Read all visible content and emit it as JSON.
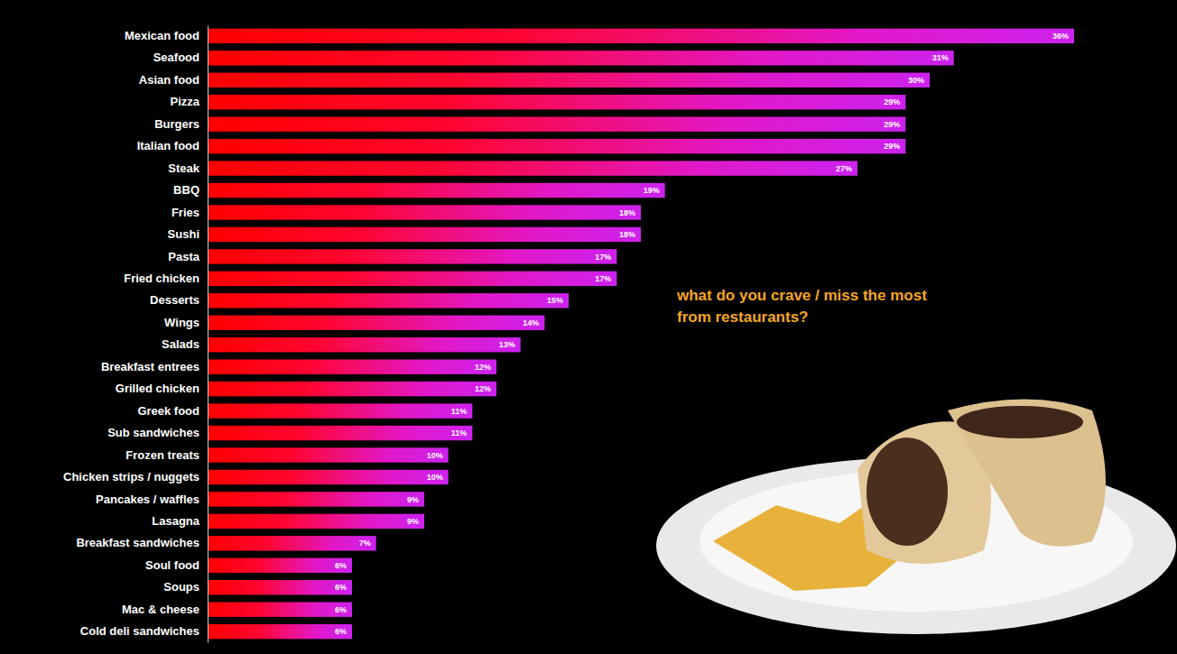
{
  "chart_data": {
    "type": "bar",
    "orientation": "horizontal",
    "title": "what do you crave / miss the most from restaurants?",
    "categories": [
      "Mexican food",
      "Seafood",
      "Asian food",
      "Pizza",
      "Burgers",
      "Italian food",
      "Steak",
      "BBQ",
      "Fries",
      "Sushi",
      "Pasta",
      "Fried chicken",
      "Desserts",
      "Wings",
      "Salads",
      "Breakfast entrees",
      "Grilled chicken",
      "Greek food",
      "Sub sandwiches",
      "Frozen treats",
      "Chicken strips / nuggets",
      "Pancakes / waffles",
      "Lasagna",
      "Breakfast sandwiches",
      "Soul food",
      "Soups",
      "Mac & cheese",
      "Cold deli sandwiches"
    ],
    "values": [
      36,
      31,
      30,
      29,
      29,
      29,
      27,
      19,
      18,
      18,
      17,
      17,
      15,
      14,
      13,
      12,
      12,
      11,
      11,
      10,
      10,
      9,
      9,
      7,
      6,
      6,
      6,
      6
    ],
    "value_labels": [
      "36%",
      "31%",
      "30%",
      "29%",
      "29%",
      "29%",
      "27%",
      "19%",
      "18%",
      "18%",
      "17%",
      "17%",
      "15%",
      "14%",
      "13%",
      "12%",
      "12%",
      "11%",
      "11%",
      "10%",
      "10%",
      "9%",
      "9%",
      "7%",
      "6%",
      "6%",
      "6%",
      "6%"
    ],
    "xlim": [
      0,
      36
    ],
    "data_labels": true,
    "tick_labels": "y",
    "grid": false
  }
}
